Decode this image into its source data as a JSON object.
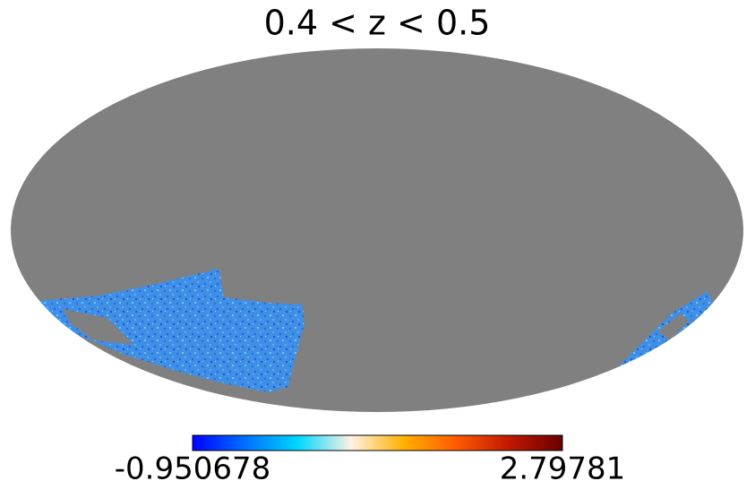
{
  "title": "0.4 < z < 0.5",
  "colorbar": {
    "min": -0.950678,
    "max": 2.79781,
    "colors": [
      "#0000ff",
      "#0070ff",
      "#00d8ff",
      "#fff2e6",
      "#ffb000",
      "#ff5a00",
      "#c01800",
      "#6a0000"
    ]
  }
}
